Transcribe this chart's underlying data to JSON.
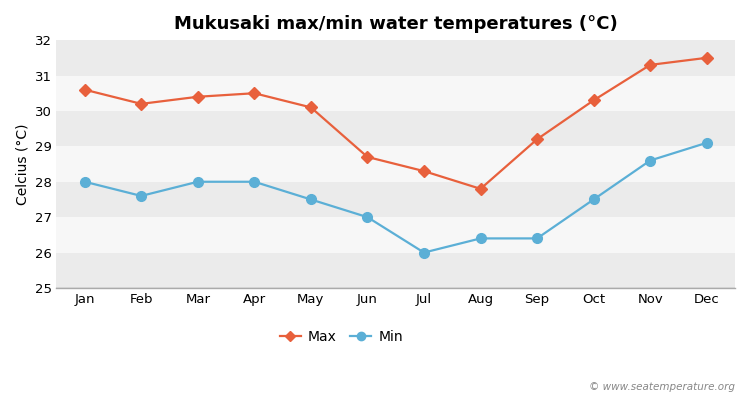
{
  "title": "Mukusaki max/min water temperatures (°C)",
  "ylabel": "Celcius (°C)",
  "months": [
    "Jan",
    "Feb",
    "Mar",
    "Apr",
    "May",
    "Jun",
    "Jul",
    "Aug",
    "Sep",
    "Oct",
    "Nov",
    "Dec"
  ],
  "max_values": [
    30.6,
    30.2,
    30.4,
    30.5,
    30.1,
    28.7,
    28.3,
    27.8,
    29.2,
    30.3,
    31.3,
    31.5
  ],
  "min_values": [
    28.0,
    27.6,
    28.0,
    28.0,
    27.5,
    27.0,
    26.0,
    26.4,
    26.4,
    27.5,
    28.6,
    29.1
  ],
  "max_color": "#e8603c",
  "min_color": "#5bafd6",
  "bg_color": "#ffffff",
  "band_colors": [
    "#ebebeb",
    "#f7f7f7"
  ],
  "ylim": [
    25,
    32
  ],
  "yticks": [
    25,
    26,
    27,
    28,
    29,
    30,
    31,
    32
  ],
  "legend_labels": [
    "Max",
    "Min"
  ],
  "watermark": "© www.seatemperature.org",
  "title_fontsize": 13,
  "axis_fontsize": 10,
  "tick_fontsize": 9.5,
  "legend_fontsize": 10,
  "linewidth": 1.6,
  "markersize_max": 6,
  "markersize_min": 7
}
